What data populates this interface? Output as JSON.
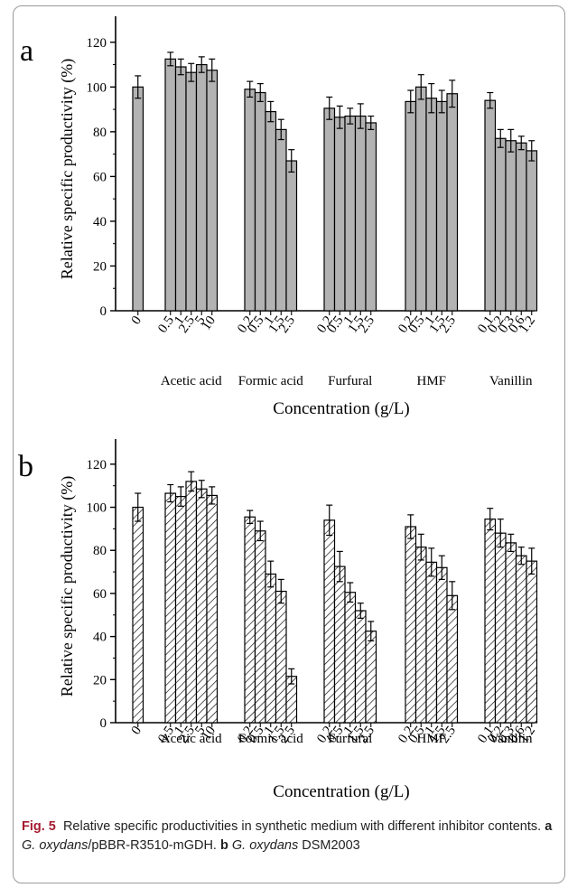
{
  "caption": {
    "fig_label": "Fig. 5",
    "text": "Relative specific productivities in synthetic medium with different inhibitor contents.",
    "panel_a_letter": "a",
    "panel_a_strain_genus": "G. oxydans",
    "panel_a_strain_rest": "/pBBR-R3510-mGDH.",
    "panel_b_letter": "b",
    "panel_b_strain_genus": "G. oxydans",
    "panel_b_strain_rest": " DSM2003"
  },
  "colors": {
    "panel_a_bar": "#b3b3b3",
    "panel_b_hatch": "#000000",
    "axis": "#000000"
  },
  "chart_data": [
    {
      "type": "bar",
      "panel": "a",
      "bar_style": "solid-gray",
      "ylabel": "Relative specific productivity   (%)",
      "xlabel": "Concentration  (g/L)",
      "ylim": [
        0,
        130
      ],
      "yticks": [
        0,
        20,
        40,
        60,
        80,
        100,
        120
      ],
      "groups": [
        {
          "name": "",
          "concentrations": [
            "0"
          ],
          "values": [
            100
          ],
          "errors": [
            5
          ]
        },
        {
          "name": "Acetic acid",
          "concentrations": [
            "0.5",
            "1",
            "2.5",
            "5",
            "10"
          ],
          "values": [
            112.5,
            109,
            106.5,
            110,
            107.5
          ],
          "errors": [
            3,
            3.5,
            4,
            3.5,
            5
          ]
        },
        {
          "name": "Formic acid",
          "concentrations": [
            "0.2",
            "0.5",
            "1",
            "1.5",
            "2.5"
          ],
          "values": [
            99,
            97.5,
            89,
            81,
            67
          ],
          "errors": [
            3.5,
            4,
            4.5,
            4.5,
            5
          ]
        },
        {
          "name": "Furfural",
          "concentrations": [
            "0.2",
            "0.5",
            "1",
            "1.5",
            "2.5"
          ],
          "values": [
            90.5,
            86.5,
            87,
            87,
            84
          ],
          "errors": [
            5,
            5,
            3.5,
            5.5,
            3
          ]
        },
        {
          "name": "HMF",
          "concentrations": [
            "0.2",
            "0.5",
            "1",
            "1.5",
            "2.5"
          ],
          "values": [
            93.5,
            100,
            95,
            93.5,
            97
          ],
          "errors": [
            5,
            5.5,
            6.5,
            5,
            6
          ]
        },
        {
          "name": "Vanillin",
          "concentrations": [
            "0.1",
            "0.2",
            "0.3",
            "0.6",
            "1.2"
          ],
          "values": [
            94,
            77,
            76,
            75,
            71.5
          ],
          "errors": [
            3.5,
            4,
            5,
            3,
            4.5
          ]
        }
      ]
    },
    {
      "type": "bar",
      "panel": "b",
      "bar_style": "hatched",
      "ylabel": "Relative specific productivity   (%)",
      "xlabel": "Concentration (g/L)",
      "ylim": [
        0,
        130
      ],
      "yticks": [
        0,
        20,
        40,
        60,
        80,
        100,
        120
      ],
      "groups": [
        {
          "name": "",
          "concentrations": [
            "0"
          ],
          "values": [
            100
          ],
          "errors": [
            6.5
          ]
        },
        {
          "name": "Acetic acid",
          "concentrations": [
            "0.5",
            "1",
            "2.5",
            "5",
            "10"
          ],
          "values": [
            106.5,
            105,
            112,
            108.5,
            105.5
          ],
          "errors": [
            4,
            4.5,
            4.5,
            4,
            4
          ]
        },
        {
          "name": "Formic acid",
          "concentrations": [
            "0.2",
            "0.5",
            "1",
            "1.5",
            "2.5"
          ],
          "values": [
            95.5,
            89,
            69,
            61,
            21.5
          ],
          "errors": [
            3,
            4.5,
            6,
            5.5,
            3.5
          ]
        },
        {
          "name": "Furfural",
          "concentrations": [
            "0.2",
            "0.5",
            "1",
            "1.5",
            "2.5"
          ],
          "values": [
            94,
            72.5,
            60.5,
            52,
            42.5
          ],
          "errors": [
            7,
            7,
            4.5,
            3.5,
            4.5
          ]
        },
        {
          "name": "HMF",
          "concentrations": [
            "0.2",
            "0.5",
            "1",
            "1.5",
            "2.5"
          ],
          "values": [
            91,
            81.5,
            74.5,
            72,
            59
          ],
          "errors": [
            5.5,
            6,
            6.5,
            5.5,
            6.5
          ]
        },
        {
          "name": "Vanillin",
          "concentrations": [
            "0.1",
            "0.2",
            "0.3",
            "0.6",
            "1.2"
          ],
          "values": [
            94.5,
            88,
            83.5,
            77.5,
            75
          ],
          "errors": [
            5,
            6.5,
            4,
            4,
            6
          ]
        }
      ]
    }
  ]
}
